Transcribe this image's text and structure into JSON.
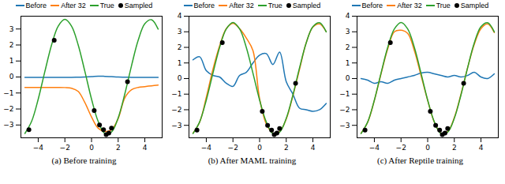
{
  "chart_data": [
    {
      "type": "line",
      "title": "(a) Before training",
      "x": [
        -5,
        -4.5,
        -4,
        -3.5,
        -3,
        -2.5,
        -2,
        -1.5,
        -1,
        -0.5,
        0,
        0.5,
        1,
        1.5,
        2,
        2.5,
        3,
        3.5,
        4,
        4.5,
        5
      ],
      "series": [
        {
          "name": "Before",
          "color": "#1f77b4",
          "values": [
            -0.02,
            -0.02,
            -0.02,
            -0.02,
            -0.02,
            -0.02,
            -0.02,
            -0.02,
            -0.01,
            0.0,
            0.02,
            0.05,
            0.04,
            0.02,
            0.0,
            -0.01,
            -0.02,
            -0.02,
            -0.02,
            -0.02,
            -0.02
          ]
        },
        {
          "name": "After 32",
          "color": "#ff7f0e",
          "values": [
            -0.65,
            -0.65,
            -0.65,
            -0.65,
            -0.65,
            -0.65,
            -0.66,
            -0.7,
            -0.9,
            -1.6,
            -2.5,
            -3.2,
            -3.4,
            -3.3,
            -2.6,
            -1.3,
            -0.8,
            -0.65,
            -0.6,
            -0.55,
            -0.5
          ]
        },
        {
          "name": "True",
          "color": "#2ca02c",
          "values": [
            -3.53,
            -2.78,
            -1.38,
            0.35,
            2.0,
            3.18,
            3.6,
            3.18,
            2.0,
            0.35,
            -1.38,
            -2.78,
            -3.53,
            -3.44,
            -2.55,
            -1.05,
            0.7,
            2.29,
            3.33,
            3.58,
            2.99
          ]
        },
        {
          "name": "Sampled",
          "type": "scatter",
          "marker": "circle",
          "color": "#000000",
          "x": [
            -4.7,
            -2.8,
            0.2,
            0.6,
            0.9,
            1.1,
            1.3,
            1.5,
            2.7
          ],
          "values": [
            -3.3,
            2.3,
            -2.1,
            -3.0,
            -3.3,
            -3.6,
            -3.5,
            -3.2,
            -0.3
          ]
        }
      ],
      "xlim": [
        -5.3,
        5.3
      ],
      "ylim": [
        -3.8,
        3.8
      ],
      "xticks": [
        -4,
        -2,
        0,
        2,
        4
      ],
      "yticks": [
        -3,
        -2,
        -1,
        0,
        1,
        2,
        3
      ],
      "legend": "top"
    },
    {
      "type": "line",
      "title": "(b) After MAML training",
      "x": [
        -5,
        -4.5,
        -4,
        -3.5,
        -3,
        -2.5,
        -2,
        -1.5,
        -1,
        -0.5,
        0,
        0.5,
        1,
        1.5,
        2,
        2.5,
        3,
        3.5,
        4,
        4.5,
        5
      ],
      "series": [
        {
          "name": "Before",
          "color": "#1f77b4",
          "values": [
            1.2,
            1.4,
            0.5,
            0.2,
            0.1,
            -0.3,
            -0.5,
            0.2,
            0.4,
            1.0,
            1.5,
            1.6,
            0.9,
            1.7,
            -0.2,
            -1.0,
            -1.9,
            -2.0,
            -2.1,
            -2.0,
            -1.6
          ]
        },
        {
          "name": "After 32",
          "color": "#ff7f0e",
          "values": [
            -3.5,
            -2.8,
            -1.2,
            0.6,
            2.1,
            3.2,
            3.55,
            3.2,
            2.6,
            1.8,
            -1.3,
            -2.9,
            -3.5,
            -3.4,
            -2.6,
            -1.1,
            0.6,
            2.3,
            3.3,
            3.5,
            3.0
          ]
        },
        {
          "name": "True",
          "color": "#2ca02c",
          "values": [
            -3.53,
            -2.78,
            -1.38,
            0.35,
            2.0,
            3.18,
            3.6,
            3.18,
            2.0,
            0.35,
            -1.38,
            -2.78,
            -3.53,
            -3.44,
            -2.55,
            -1.05,
            0.7,
            2.29,
            3.33,
            3.58,
            2.99
          ]
        },
        {
          "name": "Sampled",
          "type": "scatter",
          "marker": "circle",
          "color": "#000000",
          "x": [
            -4.7,
            -2.8,
            0.2,
            0.6,
            0.9,
            1.1,
            1.3,
            1.5,
            2.7
          ],
          "values": [
            -3.3,
            2.3,
            -2.1,
            -3.0,
            -3.3,
            -3.6,
            -3.5,
            -3.2,
            -0.3
          ]
        }
      ],
      "xlim": [
        -5.3,
        5.3
      ],
      "ylim": [
        -3.8,
        4.0
      ],
      "xticks": [
        -4,
        -2,
        0,
        2,
        4
      ],
      "yticks": [
        -3,
        -2,
        -1,
        0,
        1,
        2,
        3,
        4
      ],
      "legend": "top"
    },
    {
      "type": "line",
      "title": "(c) After Reptile training",
      "x": [
        -5,
        -4.5,
        -4,
        -3.5,
        -3,
        -2.5,
        -2,
        -1.5,
        -1,
        -0.5,
        0,
        0.5,
        1,
        1.5,
        2,
        2.5,
        3,
        3.5,
        4,
        4.5,
        5
      ],
      "series": [
        {
          "name": "Before",
          "color": "#1f77b4",
          "values": [
            0.0,
            -0.1,
            -0.3,
            -0.2,
            -0.3,
            -0.1,
            0.0,
            0.1,
            0.2,
            0.35,
            0.4,
            0.3,
            0.2,
            0.1,
            0.2,
            0.1,
            0.2,
            0.4,
            0.1,
            0.0,
            0.3
          ]
        },
        {
          "name": "After 32",
          "color": "#ff7f0e",
          "values": [
            -3.5,
            -2.8,
            -1.4,
            0.3,
            1.9,
            3.0,
            3.1,
            2.9,
            1.8,
            0.2,
            -1.4,
            -2.8,
            -3.5,
            -3.4,
            -2.5,
            -1.0,
            0.7,
            2.2,
            3.2,
            3.5,
            2.95
          ]
        },
        {
          "name": "True",
          "color": "#2ca02c",
          "values": [
            -3.53,
            -2.78,
            -1.38,
            0.35,
            2.0,
            3.18,
            3.6,
            3.18,
            2.0,
            0.35,
            -1.38,
            -2.78,
            -3.53,
            -3.44,
            -2.55,
            -1.05,
            0.7,
            2.29,
            3.33,
            3.58,
            2.99
          ]
        },
        {
          "name": "Sampled",
          "type": "scatter",
          "marker": "circle",
          "color": "#000000",
          "x": [
            -4.7,
            -2.8,
            0.2,
            0.6,
            0.9,
            1.1,
            1.3,
            1.5,
            2.7
          ],
          "values": [
            -3.3,
            2.3,
            -2.1,
            -3.0,
            -3.3,
            -3.6,
            -3.5,
            -3.2,
            -0.3
          ]
        }
      ],
      "xlim": [
        -5.3,
        5.3
      ],
      "ylim": [
        -3.8,
        4.0
      ],
      "xticks": [
        -4,
        -2,
        0,
        2,
        4
      ],
      "yticks": [
        -3,
        -2,
        -1,
        0,
        1,
        2,
        3,
        4
      ],
      "legend": "top"
    }
  ]
}
